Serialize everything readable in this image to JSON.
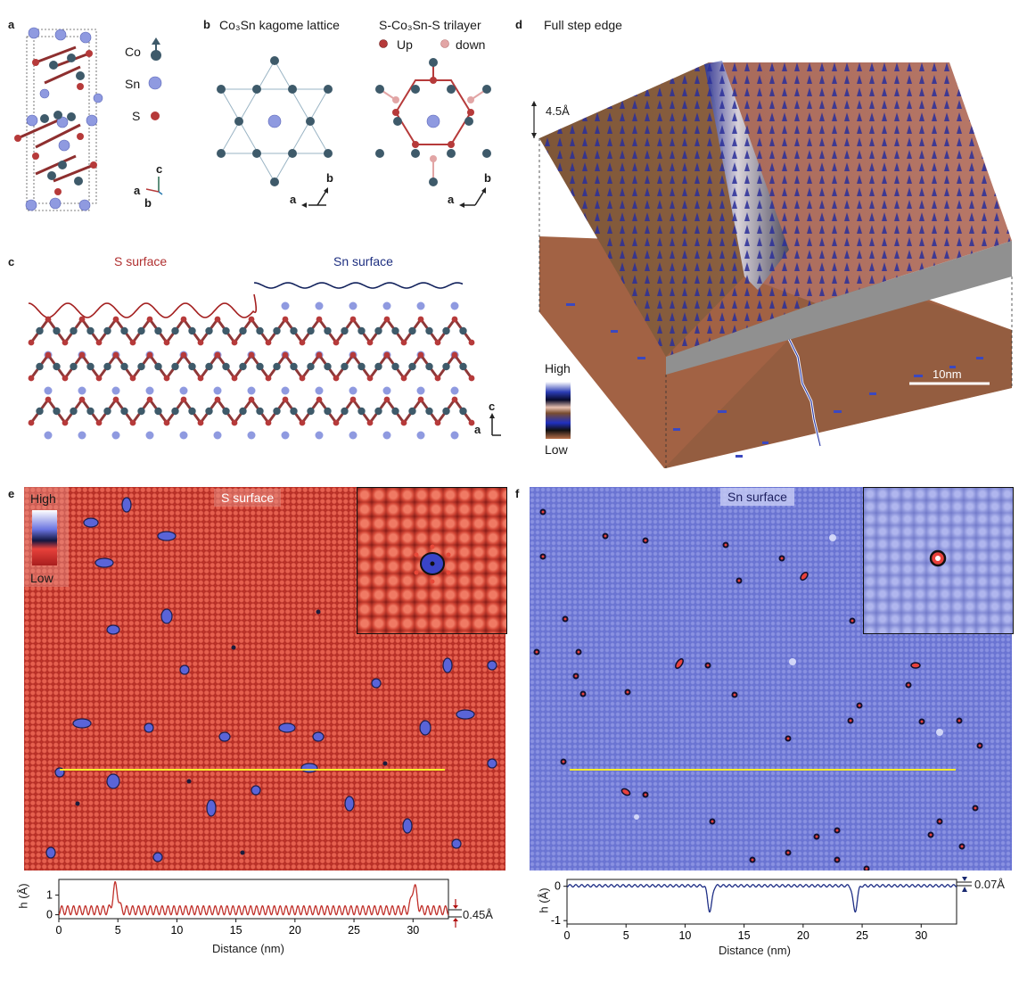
{
  "panels": {
    "a": {
      "letter": "a",
      "legend": [
        {
          "label": "Co",
          "color": "#3e5a6a"
        },
        {
          "label": "Sn",
          "color": "#8f9ae0"
        },
        {
          "label": "S",
          "color": "#b63a3a"
        }
      ],
      "axes": {
        "c": "c",
        "a": "a",
        "b": "b"
      }
    },
    "b": {
      "letter": "b",
      "title_left": "Co₃Sn kagome lattice",
      "title_right": "S-Co₃Sn-S trilayer",
      "legend_up": "Up",
      "legend_down": "down",
      "axes": {
        "a": "a",
        "b": "b"
      }
    },
    "c": {
      "letter": "c",
      "label_s": "S surface",
      "label_sn": "Sn surface",
      "axes": {
        "c": "c",
        "a": "a"
      }
    },
    "d": {
      "letter": "d",
      "title": "Full step edge",
      "height_label": "4.5Å",
      "scale_label": "10nm",
      "colorbar_high": "High",
      "colorbar_low": "Low"
    },
    "e": {
      "letter": "e",
      "tag": "S surface",
      "colorbar_high": "High",
      "colorbar_low": "Low",
      "step_label": "0.45Å"
    },
    "f": {
      "letter": "f",
      "tag": "Sn surface",
      "step_label": "0.07Å"
    }
  },
  "chart_data": [
    {
      "type": "line",
      "panel": "e",
      "xlabel": "Distance (nm)",
      "ylabel": "h (Å)",
      "xlim": [
        0,
        33
      ],
      "ylim": [
        -0.2,
        1.8
      ],
      "xticks": [
        "0",
        "5",
        "10",
        "15",
        "20",
        "25",
        "30"
      ],
      "yticks": [
        "0",
        "1"
      ],
      "color": "#c0302a",
      "peaks": [
        {
          "x": 4.8,
          "h": 1.45
        },
        {
          "x": 30.1,
          "h": 1.45
        }
      ],
      "corrugation_amplitude": 0.45,
      "corrugation_period": 0.5
    },
    {
      "type": "line",
      "panel": "f",
      "xlabel": "Distance (nm)",
      "ylabel": "h (Å)",
      "xlim": [
        0,
        33
      ],
      "ylim": [
        -1.1,
        0.2
      ],
      "xticks": [
        "0",
        "5",
        "10",
        "15",
        "20",
        "25",
        "30"
      ],
      "yticks": [
        "0",
        "-1"
      ],
      "color": "#1f2f86",
      "dips": [
        {
          "x": 12.1,
          "h": -0.75
        },
        {
          "x": 24.4,
          "h": -0.75
        }
      ],
      "corrugation_amplitude": 0.07,
      "corrugation_period": 0.5
    }
  ]
}
